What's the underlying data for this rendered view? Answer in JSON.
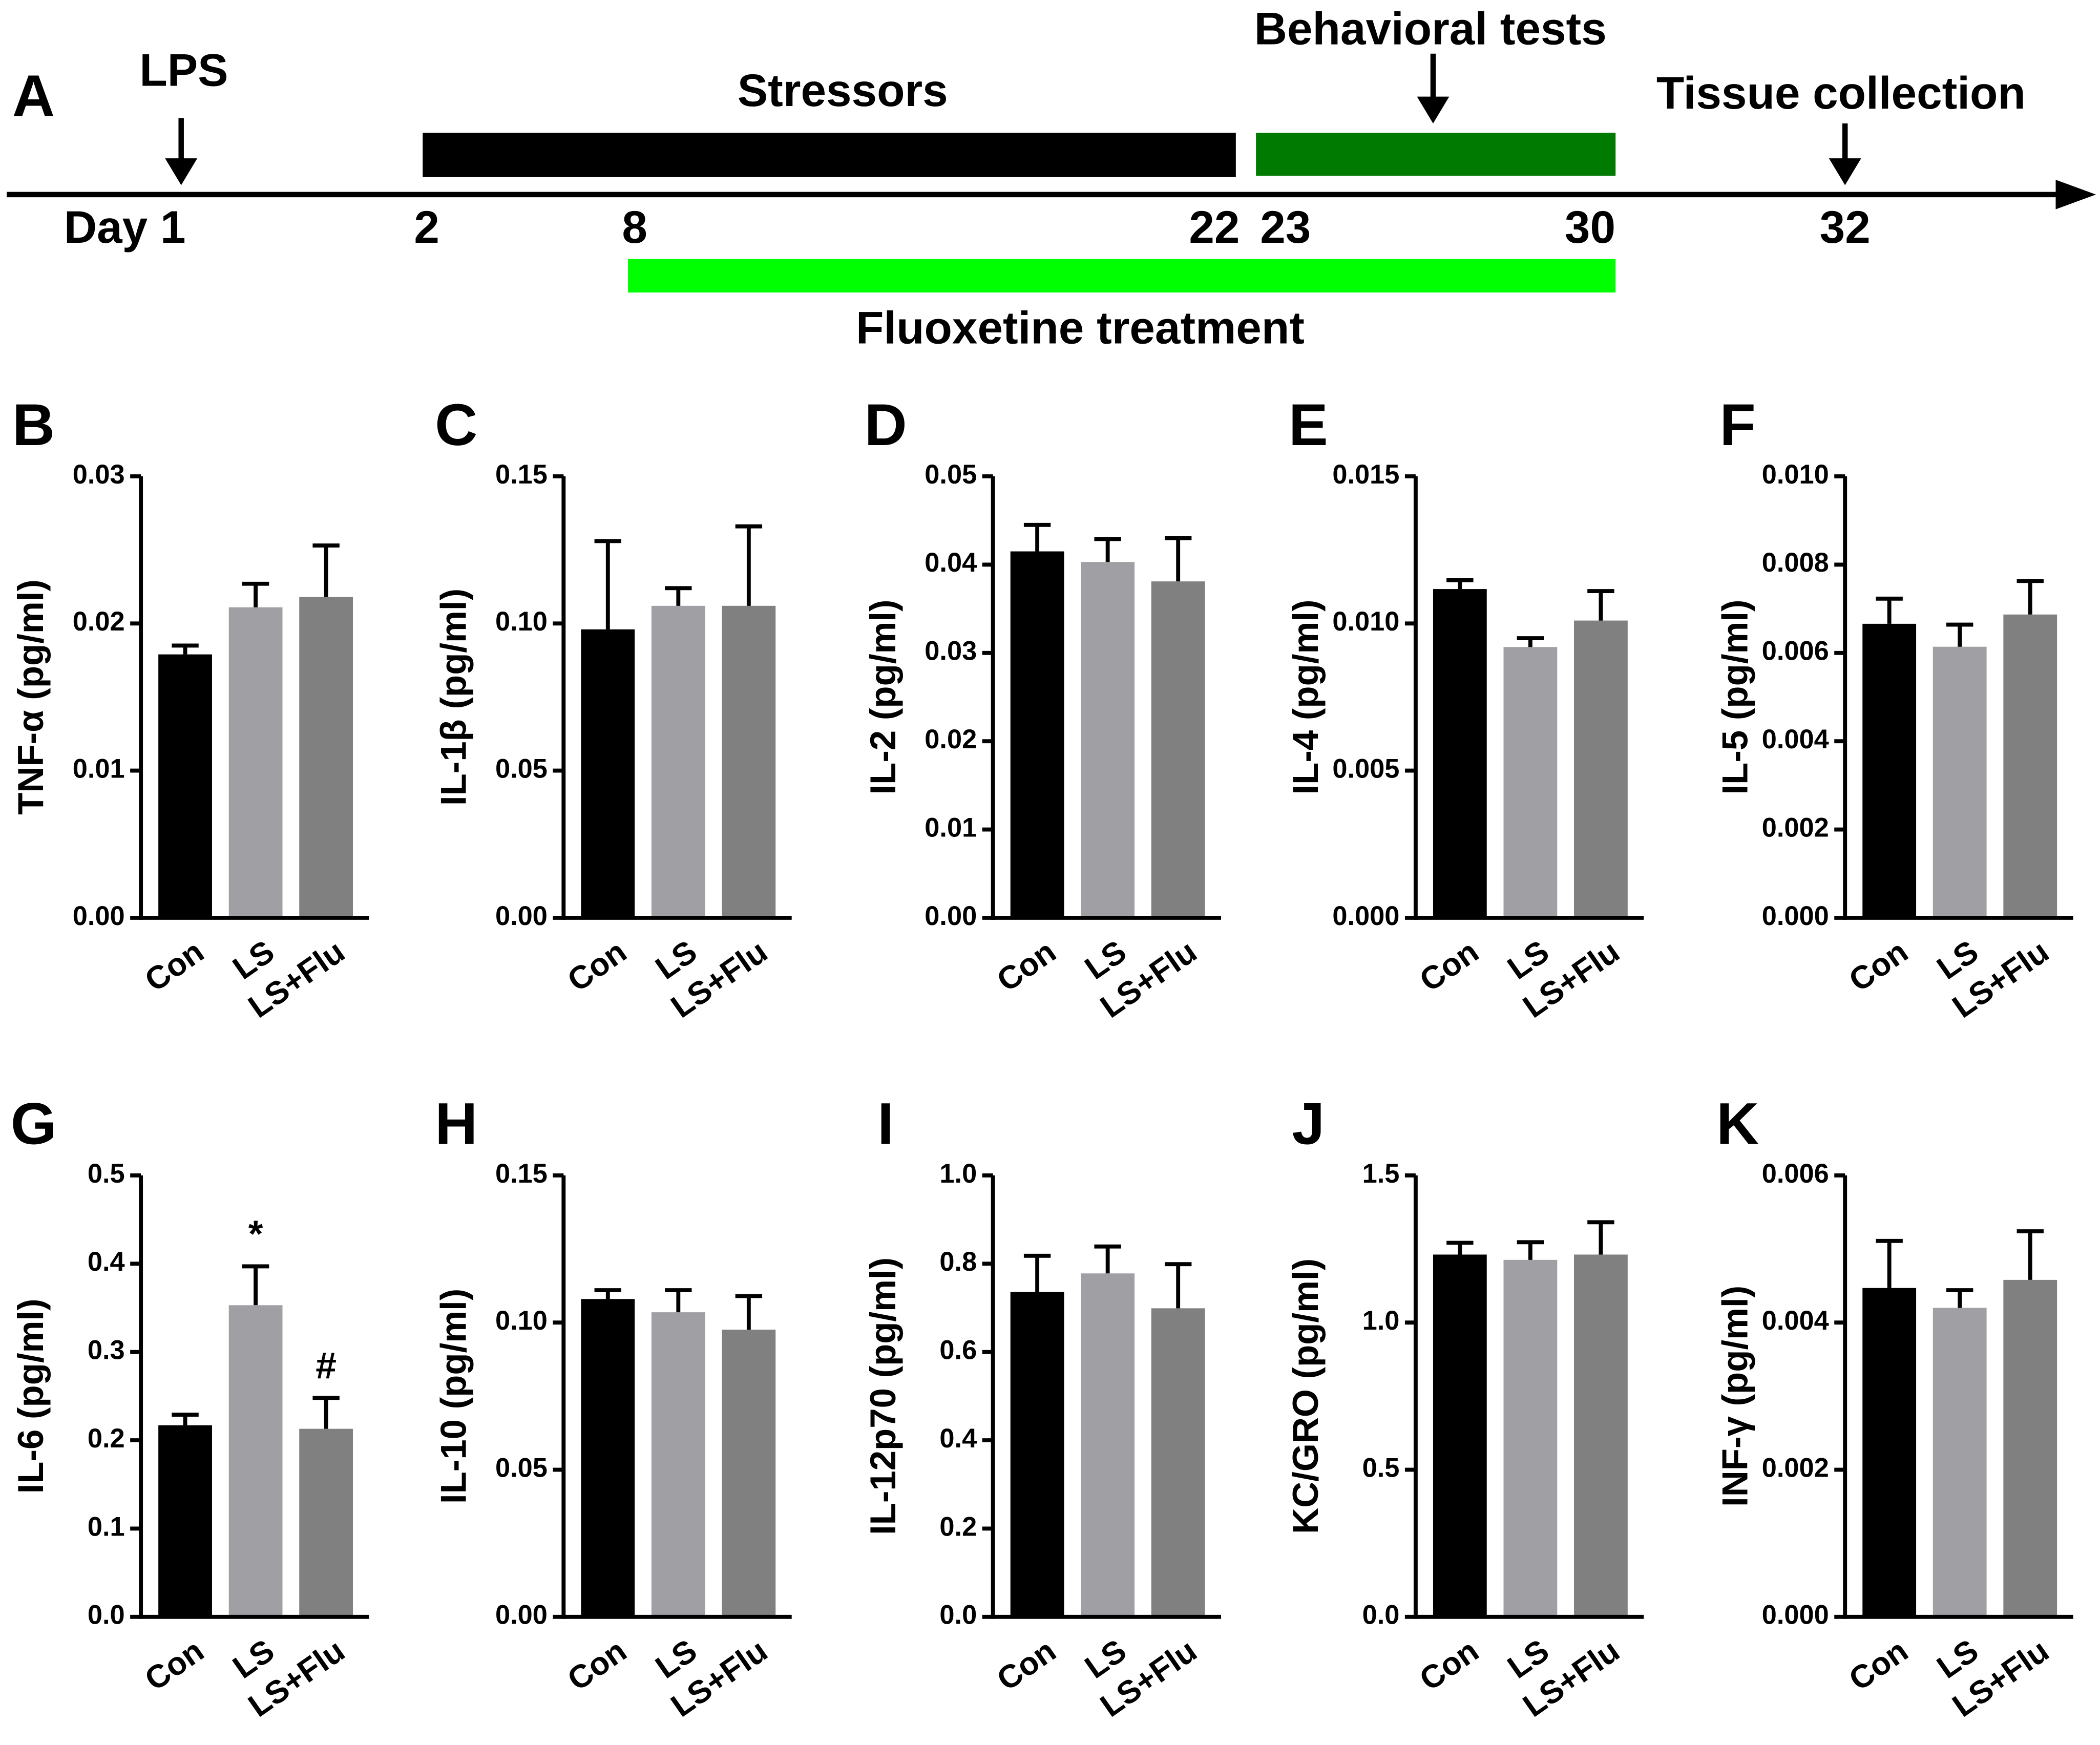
{
  "timeline": {
    "panel": "A",
    "events": [
      "LPS",
      "Stressors",
      "Behavioral tests",
      "Tissue collection"
    ],
    "days": [
      "Day 1",
      "2",
      "8",
      "22",
      "23",
      "30",
      "32"
    ],
    "treatment": "Fluoxetine treatment"
  },
  "chart_data": [
    {
      "type": "bar",
      "panel": "B",
      "ylabel": "TNF-α (pg/ml)",
      "categories": [
        "Con",
        "LS",
        "LS+Flu"
      ],
      "values": [
        0.0179,
        0.0211,
        0.0218
      ],
      "errors": [
        0.0006,
        0.0016,
        0.0035
      ],
      "colors": [
        "#000000",
        "#a0a0a4",
        "#808080"
      ],
      "ylim": [
        0,
        0.03
      ],
      "yticks": [
        {
          "value": 0,
          "label": "0.00"
        },
        0.01,
        0.02,
        0.03
      ]
    },
    {
      "type": "bar",
      "panel": "C",
      "ylabel": "IL-1β (pg/ml)",
      "categories": [
        "Con",
        "LS",
        "LS+Flu"
      ],
      "values": [
        0.098,
        0.106,
        0.106
      ],
      "errors": [
        0.03,
        0.006,
        0.027
      ],
      "colors": [
        "#000000",
        "#a0a0a4",
        "#808080"
      ],
      "ylim": [
        0,
        0.15
      ],
      "yticks": [
        {
          "value": 0,
          "label": "0.00"
        },
        0.05,
        {
          "value": 0.1,
          "label": "0.10"
        },
        0.15
      ]
    },
    {
      "type": "bar",
      "panel": "D",
      "ylabel": "IL-2 (pg/ml)",
      "categories": [
        "Con",
        "LS",
        "LS+Flu"
      ],
      "values": [
        0.0415,
        0.0403,
        0.0381
      ],
      "errors": [
        0.003,
        0.0026,
        0.0049
      ],
      "colors": [
        "#000000",
        "#a0a0a4",
        "#808080"
      ],
      "ylim": [
        0,
        0.05
      ],
      "yticks": [
        {
          "value": 0,
          "label": "0.00"
        },
        0.01,
        0.02,
        0.03,
        0.04,
        0.05
      ]
    },
    {
      "type": "bar",
      "panel": "E",
      "ylabel": "IL-4 (pg/ml)",
      "categories": [
        "Con",
        "LS",
        "LS+Flu"
      ],
      "values": [
        0.01117,
        0.0092,
        0.0101
      ],
      "errors": [
        0.0003,
        0.0003,
        0.001
      ],
      "colors": [
        "#000000",
        "#a0a0a4",
        "#808080"
      ],
      "ylim": [
        0,
        0.015
      ],
      "yticks": [
        {
          "value": 0,
          "label": "0.000"
        },
        0.005,
        {
          "value": 0.01,
          "label": "0.010"
        },
        0.015
      ]
    },
    {
      "type": "bar",
      "panel": "F",
      "ylabel": "IL-5 (pg/ml)",
      "categories": [
        "Con",
        "LS",
        "LS+Flu"
      ],
      "values": [
        0.00666,
        0.00614,
        0.00687
      ],
      "errors": [
        0.00057,
        0.0005,
        0.00076
      ],
      "colors": [
        "#000000",
        "#a0a0a4",
        "#808080"
      ],
      "ylim": [
        0,
        0.01
      ],
      "yticks": [
        {
          "value": 0,
          "label": "0.000"
        },
        0.002,
        0.004,
        0.006,
        0.008,
        {
          "value": 0.01,
          "label": "0.010"
        }
      ]
    },
    {
      "type": "bar",
      "panel": "G",
      "ylabel": "IL-6 (pg/ml)",
      "categories": [
        "Con",
        "LS",
        "LS+Flu"
      ],
      "values": [
        0.217,
        0.353,
        0.213
      ],
      "errors": [
        0.012,
        0.044,
        0.035
      ],
      "colors": [
        "#000000",
        "#a0a0a4",
        "#808080"
      ],
      "ylim": [
        0,
        0.5
      ],
      "yticks": [
        {
          "value": 0,
          "label": "0.0"
        },
        0.1,
        0.2,
        0.3,
        0.4,
        0.5
      ],
      "annotations": [
        {
          "text": "*",
          "category": "LS"
        },
        {
          "text": "#",
          "category": "LS+Flu"
        }
      ]
    },
    {
      "type": "bar",
      "panel": "H",
      "ylabel": "IL-10 (pg/ml)",
      "categories": [
        "Con",
        "LS",
        "LS+Flu"
      ],
      "values": [
        0.108,
        0.1035,
        0.0976
      ],
      "errors": [
        0.003,
        0.0075,
        0.0114
      ],
      "colors": [
        "#000000",
        "#a0a0a4",
        "#808080"
      ],
      "ylim": [
        0,
        0.15
      ],
      "yticks": [
        {
          "value": 0,
          "label": "0.00"
        },
        0.05,
        {
          "value": 0.1,
          "label": "0.10"
        },
        0.15
      ]
    },
    {
      "type": "bar",
      "panel": "I",
      "ylabel": "IL-12p70 (pg/ml)",
      "categories": [
        "Con",
        "LS",
        "LS+Flu"
      ],
      "values": [
        0.736,
        0.778,
        0.699
      ],
      "errors": [
        0.082,
        0.061,
        0.1
      ],
      "colors": [
        "#000000",
        "#a0a0a4",
        "#808080"
      ],
      "ylim": [
        0,
        1
      ],
      "yticks": [
        {
          "value": 0,
          "label": "0.0"
        },
        0.2,
        0.4,
        0.6,
        0.8,
        {
          "value": 1,
          "label": "1.0"
        }
      ]
    },
    {
      "type": "bar",
      "panel": "J",
      "ylabel": "KC/GRO (pg/ml)",
      "categories": [
        "Con",
        "LS",
        "LS+Flu"
      ],
      "values": [
        1.231,
        1.213,
        1.231
      ],
      "errors": [
        0.04,
        0.06,
        0.11
      ],
      "colors": [
        "#000000",
        "#a0a0a4",
        "#808080"
      ],
      "ylim": [
        0,
        1.5
      ],
      "yticks": [
        {
          "value": 0,
          "label": "0.0"
        },
        0.5,
        {
          "value": 1,
          "label": "1.0"
        },
        1.5
      ]
    },
    {
      "type": "bar",
      "panel": "K",
      "ylabel": "INF-γ (pg/ml)",
      "categories": [
        "Con",
        "LS",
        "LS+Flu"
      ],
      "values": [
        0.00447,
        0.0042,
        0.00458
      ],
      "errors": [
        0.00064,
        0.00024,
        0.00066
      ],
      "colors": [
        "#000000",
        "#a0a0a4",
        "#808080"
      ],
      "ylim": [
        0,
        0.006
      ],
      "yticks": [
        {
          "value": 0,
          "label": "0.000"
        },
        0.002,
        0.004,
        0.006
      ]
    }
  ]
}
